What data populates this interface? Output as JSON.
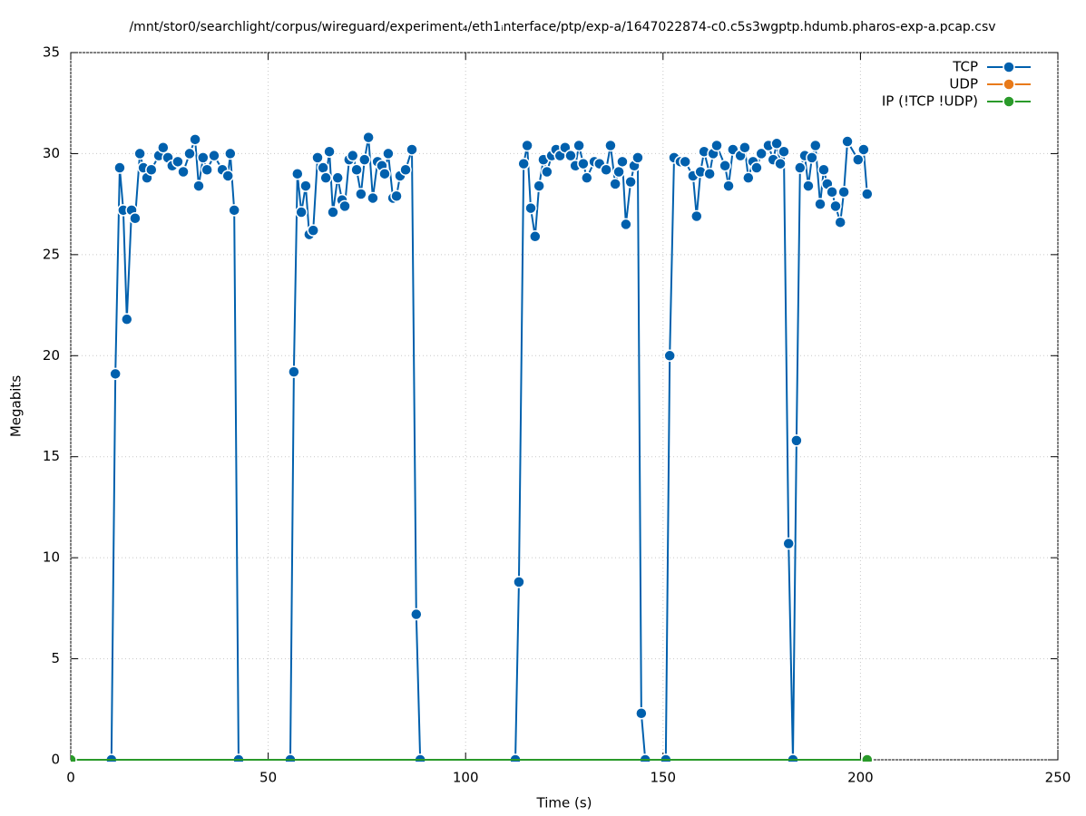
{
  "chart_data": {
    "type": "line",
    "title": "/mnt/stor0/searchlight/corpus/wireguard/experiment₄/eth1ᵢnterface/ptp/exp-a/1647022874-c0.c5s3wgptp.hdumb.pharos-exp-a.pcap.csv",
    "x_label": "Time (s)",
    "y_label": "Megabits",
    "xlim": [
      0,
      250
    ],
    "ylim": [
      0,
      35
    ],
    "xticks": [
      0,
      50,
      100,
      150,
      200,
      250
    ],
    "yticks": [
      0,
      5,
      10,
      15,
      20,
      25,
      30,
      35
    ],
    "grid": true,
    "legend": "top-right",
    "series": [
      {
        "name": "TCP",
        "color": "#0060ad",
        "x": [
          10.3,
          11.3,
          12.4,
          13.3,
          14.2,
          15.4,
          16.3,
          17.5,
          18.4,
          19.3,
          20.4,
          22.3,
          23.4,
          24.6,
          25.7,
          27.1,
          28.5,
          30.1,
          31.5,
          32.4,
          33.5,
          34.5,
          36.3,
          38.4,
          39.8,
          40.4,
          41.4,
          42.5,
          55.6,
          56.5,
          57.4,
          58.4,
          59.5,
          60.4,
          61.4,
          62.5,
          63.9,
          64.6,
          65.5,
          66.4,
          67.6,
          68.7,
          69.4,
          70.5,
          71.4,
          72.4,
          73.5,
          74.4,
          75.4,
          76.5,
          77.7,
          78.8,
          79.5,
          80.4,
          81.6,
          82.5,
          83.4,
          84.8,
          86.4,
          87.5,
          88.5,
          112.6,
          113.5,
          114.7,
          115.6,
          116.5,
          117.6,
          118.6,
          119.7,
          120.6,
          121.8,
          122.9,
          123.9,
          125.2,
          126.6,
          127.8,
          128.7,
          129.8,
          130.7,
          132.6,
          133.9,
          135.6,
          136.7,
          137.9,
          138.8,
          139.7,
          140.6,
          141.8,
          142.7,
          143.6,
          144.5,
          145.5,
          150.7,
          151.7,
          152.8,
          154.4,
          155.6,
          157.6,
          158.5,
          159.5,
          160.4,
          161.8,
          162.7,
          163.6,
          165.7,
          166.6,
          167.7,
          169.6,
          170.7,
          171.6,
          172.8,
          173.7,
          174.9,
          176.7,
          177.9,
          178.8,
          179.7,
          180.6,
          181.8,
          182.9,
          183.8,
          184.7,
          185.9,
          186.8,
          187.7,
          188.6,
          189.8,
          190.7,
          191.6,
          192.8,
          193.7,
          194.9,
          195.8,
          196.7,
          199.4,
          200.8,
          201.7
        ],
        "values": [
          0,
          19.1,
          29.3,
          27.2,
          21.8,
          27.2,
          26.8,
          30.0,
          29.3,
          28.8,
          29.2,
          29.9,
          30.3,
          29.8,
          29.4,
          29.6,
          29.1,
          30.0,
          30.7,
          28.4,
          29.8,
          29.2,
          29.9,
          29.2,
          28.9,
          30.0,
          27.2,
          0,
          0,
          19.2,
          29.0,
          27.1,
          28.4,
          26.0,
          26.2,
          29.8,
          29.3,
          28.8,
          30.1,
          27.1,
          28.8,
          27.7,
          27.4,
          29.7,
          29.9,
          29.2,
          28.0,
          29.7,
          30.8,
          27.8,
          29.6,
          29.4,
          29.0,
          30.0,
          27.8,
          27.9,
          28.9,
          29.2,
          30.2,
          7.2,
          0,
          0,
          8.8,
          29.5,
          30.4,
          27.3,
          25.9,
          28.4,
          29.7,
          29.1,
          29.9,
          30.2,
          29.9,
          30.3,
          29.9,
          29.4,
          30.4,
          29.5,
          28.8,
          29.6,
          29.5,
          29.2,
          30.4,
          28.5,
          29.1,
          29.6,
          26.5,
          28.6,
          29.4,
          29.8,
          2.3,
          0,
          0,
          20.0,
          29.8,
          29.6,
          29.6,
          28.9,
          26.9,
          29.1,
          30.1,
          29.0,
          30.0,
          30.4,
          29.4,
          28.4,
          30.2,
          29.9,
          30.3,
          28.8,
          29.6,
          29.3,
          30.0,
          30.4,
          29.7,
          30.5,
          29.5,
          30.1,
          10.7,
          0,
          15.8,
          29.3,
          29.9,
          28.4,
          29.8,
          30.4,
          27.5,
          29.2,
          28.5,
          28.1,
          27.4,
          26.6,
          28.1,
          30.6,
          29.7,
          30.2,
          28.0
        ]
      },
      {
        "name": "UDP",
        "color": "#e87a1a",
        "x": [
          0,
          201.7
        ],
        "values": [
          0,
          0
        ]
      },
      {
        "name": "IP (!TCP  !UDP)",
        "color": "#2a9a2a",
        "x": [
          0,
          201.7
        ],
        "values": [
          0,
          0
        ]
      }
    ]
  }
}
